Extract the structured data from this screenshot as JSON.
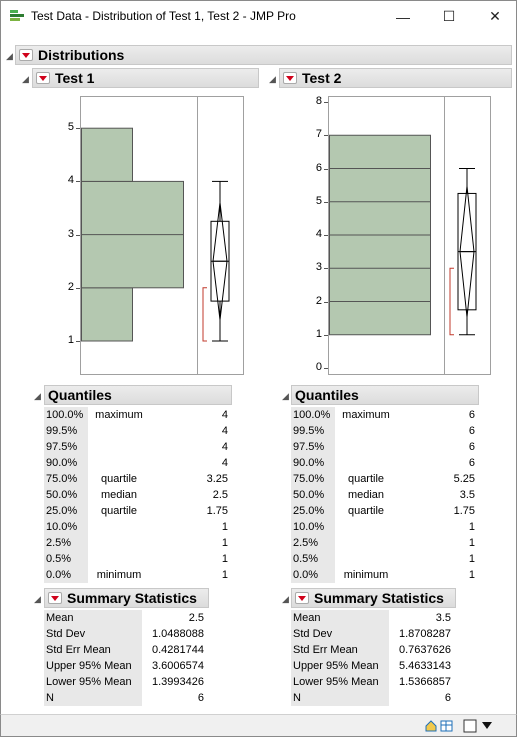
{
  "window": {
    "title": "Test Data - Distribution of Test 1, Test 2 - JMP Pro",
    "minimize": "—",
    "maximize": "☐",
    "close": "✕"
  },
  "report": {
    "title": "Distributions"
  },
  "test1": {
    "title": "Test 1",
    "y_axis_ticks": [
      "1",
      "2",
      "3",
      "4",
      "5"
    ],
    "histogram_bins": [
      {
        "from": 1,
        "to": 2,
        "count": 1
      },
      {
        "from": 2,
        "to": 4,
        "count": 2
      },
      {
        "from": 4,
        "to": 5,
        "count": 1
      }
    ],
    "boxplot": {
      "min": 1,
      "q1": 1.75,
      "median": 2.5,
      "q3": 3.25,
      "max": 4,
      "mean": 2.5,
      "ci_low": 1.3993426,
      "ci_high": 3.6006574,
      "shortest_half_low": 1,
      "shortest_half_high": 2
    },
    "quantiles_title": "Quantiles",
    "quantiles": [
      {
        "pct": "100.0%",
        "label": "maximum",
        "value": "4"
      },
      {
        "pct": "99.5%",
        "label": "",
        "value": "4"
      },
      {
        "pct": "97.5%",
        "label": "",
        "value": "4"
      },
      {
        "pct": "90.0%",
        "label": "",
        "value": "4"
      },
      {
        "pct": "75.0%",
        "label": "quartile",
        "value": "3.25"
      },
      {
        "pct": "50.0%",
        "label": "median",
        "value": "2.5"
      },
      {
        "pct": "25.0%",
        "label": "quartile",
        "value": "1.75"
      },
      {
        "pct": "10.0%",
        "label": "",
        "value": "1"
      },
      {
        "pct": "2.5%",
        "label": "",
        "value": "1"
      },
      {
        "pct": "0.5%",
        "label": "",
        "value": "1"
      },
      {
        "pct": "0.0%",
        "label": "minimum",
        "value": "1"
      }
    ],
    "summary_title": "Summary Statistics",
    "summary": [
      {
        "label": "Mean",
        "value": "2.5"
      },
      {
        "label": "Std Dev",
        "value": "1.0488088"
      },
      {
        "label": "Std Err Mean",
        "value": "0.4281744"
      },
      {
        "label": "Upper 95% Mean",
        "value": "3.6006574"
      },
      {
        "label": "Lower 95% Mean",
        "value": "1.3993426"
      },
      {
        "label": "N",
        "value": "6"
      }
    ]
  },
  "test2": {
    "title": "Test 2",
    "y_axis_ticks": [
      "0",
      "1",
      "2",
      "3",
      "4",
      "5",
      "6",
      "7",
      "8"
    ],
    "histogram_bins": [
      {
        "from": 1,
        "to": 7,
        "count": 1
      }
    ],
    "boxplot": {
      "min": 1,
      "q1": 1.75,
      "median": 3.5,
      "q3": 5.25,
      "max": 6,
      "mean": 3.5,
      "ci_low": 1.5366857,
      "ci_high": 5.4633143,
      "shortest_half_low": 1,
      "shortest_half_high": 3
    },
    "quantiles_title": "Quantiles",
    "quantiles": [
      {
        "pct": "100.0%",
        "label": "maximum",
        "value": "6"
      },
      {
        "pct": "99.5%",
        "label": "",
        "value": "6"
      },
      {
        "pct": "97.5%",
        "label": "",
        "value": "6"
      },
      {
        "pct": "90.0%",
        "label": "",
        "value": "6"
      },
      {
        "pct": "75.0%",
        "label": "quartile",
        "value": "5.25"
      },
      {
        "pct": "50.0%",
        "label": "median",
        "value": "3.5"
      },
      {
        "pct": "25.0%",
        "label": "quartile",
        "value": "1.75"
      },
      {
        "pct": "10.0%",
        "label": "",
        "value": "1"
      },
      {
        "pct": "2.5%",
        "label": "",
        "value": "1"
      },
      {
        "pct": "0.5%",
        "label": "",
        "value": "1"
      },
      {
        "pct": "0.0%",
        "label": "minimum",
        "value": "1"
      }
    ],
    "summary_title": "Summary Statistics",
    "summary": [
      {
        "label": "Mean",
        "value": "3.5"
      },
      {
        "label": "Std Dev",
        "value": "1.8708287"
      },
      {
        "label": "Std Err Mean",
        "value": "0.7637626"
      },
      {
        "label": "Upper 95% Mean",
        "value": "5.4633143"
      },
      {
        "label": "Lower 95% Mean",
        "value": "1.5366857"
      },
      {
        "label": "N",
        "value": "6"
      }
    ]
  },
  "statusbar": {
    "icons": [
      "home-icon",
      "table-icon",
      "checkbox-icon",
      "dropdown-icon"
    ]
  },
  "colors": {
    "histogram_fill": "#b4c8b0",
    "histogram_stroke": "#555555",
    "bracket": "#c0392b",
    "accent_red": "#d0021b"
  }
}
